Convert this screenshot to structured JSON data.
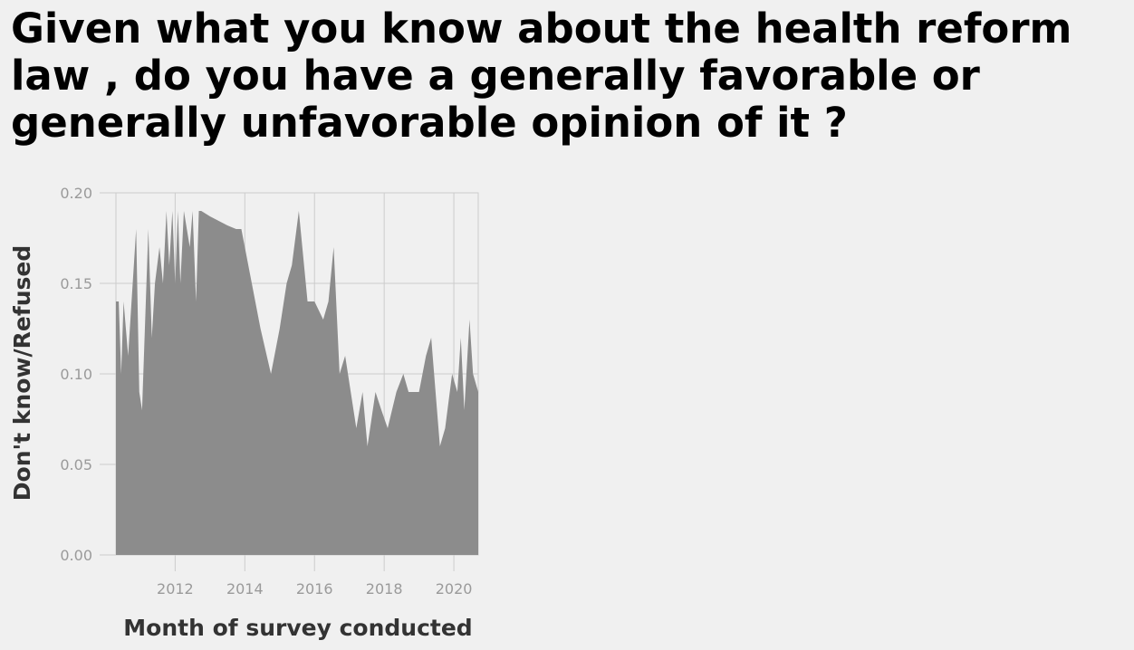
{
  "chart_data": {
    "type": "area",
    "title": "Given what you know about the health reform law , do you have a generally favorable or generally unfavorable opinion of it ?",
    "xlabel": "Month of survey conducted",
    "ylabel": "Don't know/Refused",
    "xlim": [
      2010.3,
      2020.7
    ],
    "ylim": [
      0,
      0.2
    ],
    "x_ticks": [
      2012,
      2014,
      2016,
      2018,
      2020
    ],
    "x_tick_labels": [
      "2012",
      "2014",
      "2016",
      "2018",
      "2020"
    ],
    "y_ticks": [
      0,
      0.05,
      0.1,
      0.15,
      0.2
    ],
    "y_tick_labels": [
      "0.00",
      "0.05",
      "0.10",
      "0.15",
      "0.20"
    ],
    "grid": true,
    "legend": "none",
    "colors": {
      "area": "#8c8c8c",
      "grid": "#cccccc",
      "background": "#f0f0f0"
    },
    "series": [
      {
        "x": [
          2010.3,
          2010.38,
          2010.45,
          2010.52,
          2010.65,
          2010.88,
          2010.97,
          2011.05,
          2011.23,
          2011.33,
          2011.42,
          2011.55,
          2011.65,
          2011.75,
          2011.83,
          2011.92,
          2012.0,
          2012.08,
          2012.15,
          2012.25,
          2012.42,
          2012.5,
          2012.6,
          2012.68,
          2012.75,
          2013.0,
          2013.5,
          2013.75,
          2013.9,
          2014.2,
          2014.45,
          2014.75,
          2015.0,
          2015.2,
          2015.35,
          2015.55,
          2015.8,
          2016.0,
          2016.25,
          2016.4,
          2016.55,
          2016.72,
          2016.88,
          2017.2,
          2017.38,
          2017.52,
          2017.75,
          2017.92,
          2018.1,
          2018.35,
          2018.55,
          2018.7,
          2019.0,
          2019.2,
          2019.35,
          2019.6,
          2019.75,
          2019.95,
          2020.1,
          2020.2,
          2020.3,
          2020.45,
          2020.55,
          2020.7
        ],
        "values": [
          0.14,
          0.14,
          0.1,
          0.14,
          0.11,
          0.18,
          0.09,
          0.08,
          0.18,
          0.12,
          0.15,
          0.17,
          0.15,
          0.19,
          0.16,
          0.19,
          0.15,
          0.19,
          0.15,
          0.19,
          0.17,
          0.19,
          0.14,
          0.19,
          0.19,
          0.187,
          0.182,
          0.18,
          0.18,
          0.15,
          0.125,
          0.1,
          0.125,
          0.15,
          0.16,
          0.19,
          0.14,
          0.14,
          0.13,
          0.14,
          0.17,
          0.1,
          0.11,
          0.07,
          0.09,
          0.06,
          0.09,
          0.08,
          0.07,
          0.09,
          0.1,
          0.09,
          0.09,
          0.11,
          0.12,
          0.06,
          0.07,
          0.1,
          0.09,
          0.12,
          0.08,
          0.13,
          0.1,
          0.09
        ]
      }
    ]
  }
}
